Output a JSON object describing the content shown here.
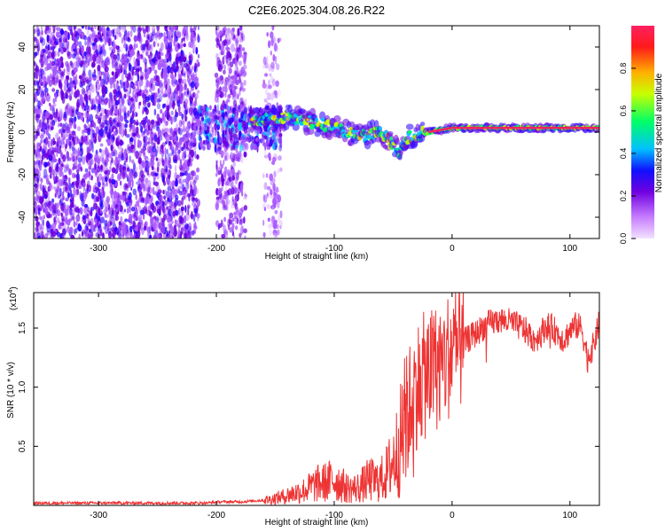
{
  "title": "C2E6.2025.304.08.26.R22",
  "chart_data": [
    {
      "type": "heatmap",
      "xlabel": "Height of straight line (km)",
      "ylabel": "Frequency (Hz)",
      "xlim": [
        -355,
        125
      ],
      "ylim": [
        -50,
        50
      ],
      "x_ticks": [
        -300,
        -200,
        -100,
        0,
        100
      ],
      "y_ticks": [
        -40,
        -20,
        0,
        20,
        40
      ],
      "colorbar": {
        "label": "Normalized spectral amplitude",
        "range": [
          0,
          1
        ],
        "ticks": [
          0.0,
          0.2,
          0.4,
          0.6,
          0.8
        ],
        "colors": [
          "#e8c8ff",
          "#a855ff",
          "#6a00e0",
          "#2a00ff",
          "#00c8ff",
          "#00ff66",
          "#c8ff00",
          "#ffaa00",
          "#ff2020",
          "#ff2060"
        ]
      },
      "features": [
        {
          "region": "broadband noise",
          "x_range": [
            -355,
            -215
          ],
          "freq_range": [
            -50,
            50
          ],
          "amplitude": 0.25
        },
        {
          "region": "noise band",
          "x_range": [
            -200,
            -175
          ],
          "freq_range": [
            -50,
            50
          ],
          "amplitude": 0.2
        },
        {
          "region": "noise band",
          "x_range": [
            -160,
            -145
          ],
          "freq_range": [
            -50,
            50
          ],
          "amplitude": 0.1
        },
        {
          "region": "signal onset",
          "x_range": [
            -215,
            -145
          ],
          "freq_range": [
            -8,
            12
          ],
          "amplitude": 0.35
        },
        {
          "region": "main echo trace",
          "points": [
            [
              -170,
              5
            ],
            [
              -140,
              7
            ],
            [
              -120,
              5
            ],
            [
              -100,
              2
            ],
            [
              -80,
              -2
            ],
            [
              -60,
              0
            ],
            [
              -45,
              -10
            ],
            [
              -40,
              -3
            ],
            [
              -20,
              0
            ],
            [
              0,
              2
            ],
            [
              50,
              2
            ],
            [
              100,
              2
            ],
            [
              125,
              2
            ]
          ],
          "amplitude": 0.95
        }
      ]
    },
    {
      "type": "line",
      "xlabel": "Height of straight line (km)",
      "ylabel": "SNR (10 * v/v)",
      "multiplier_label": "(x10",
      "multiplier_exp": "4",
      "xlim": [
        -355,
        125
      ],
      "ylim": [
        0,
        1.8
      ],
      "x_ticks": [
        -300,
        -200,
        -100,
        0,
        100
      ],
      "y_ticks": [
        0.5,
        1.0,
        1.5
      ],
      "series": [
        {
          "name": "SNR",
          "color": "#ee3333",
          "x": [
            -355,
            -330,
            -300,
            -270,
            -240,
            -210,
            -195,
            -180,
            -165,
            -155,
            -145,
            -135,
            -125,
            -115,
            -105,
            -100,
            -95,
            -90,
            -85,
            -80,
            -75,
            -70,
            -65,
            -60,
            -55,
            -50,
            -45,
            -40,
            -35,
            -30,
            -25,
            -20,
            -15,
            -10,
            -5,
            0,
            5,
            10,
            15,
            20,
            25,
            30,
            35,
            40,
            45,
            50,
            55,
            60,
            65,
            70,
            75,
            80,
            85,
            90,
            95,
            100,
            105,
            110,
            115,
            120,
            125
          ],
          "y": [
            0.02,
            0.02,
            0.02,
            0.02,
            0.02,
            0.02,
            0.03,
            0.03,
            0.04,
            0.05,
            0.07,
            0.1,
            0.13,
            0.18,
            0.2,
            0.22,
            0.19,
            0.15,
            0.14,
            0.15,
            0.18,
            0.22,
            0.2,
            0.22,
            0.28,
            0.38,
            0.5,
            0.68,
            0.88,
            1.02,
            1.08,
            1.12,
            1.15,
            1.2,
            1.25,
            1.3,
            1.33,
            1.38,
            1.42,
            1.45,
            1.5,
            1.53,
            1.55,
            1.57,
            1.56,
            1.55,
            1.52,
            1.5,
            1.45,
            1.4,
            1.45,
            1.52,
            1.5,
            1.45,
            1.4,
            1.48,
            1.52,
            1.5,
            1.25,
            1.35,
            1.55
          ]
        }
      ]
    }
  ]
}
